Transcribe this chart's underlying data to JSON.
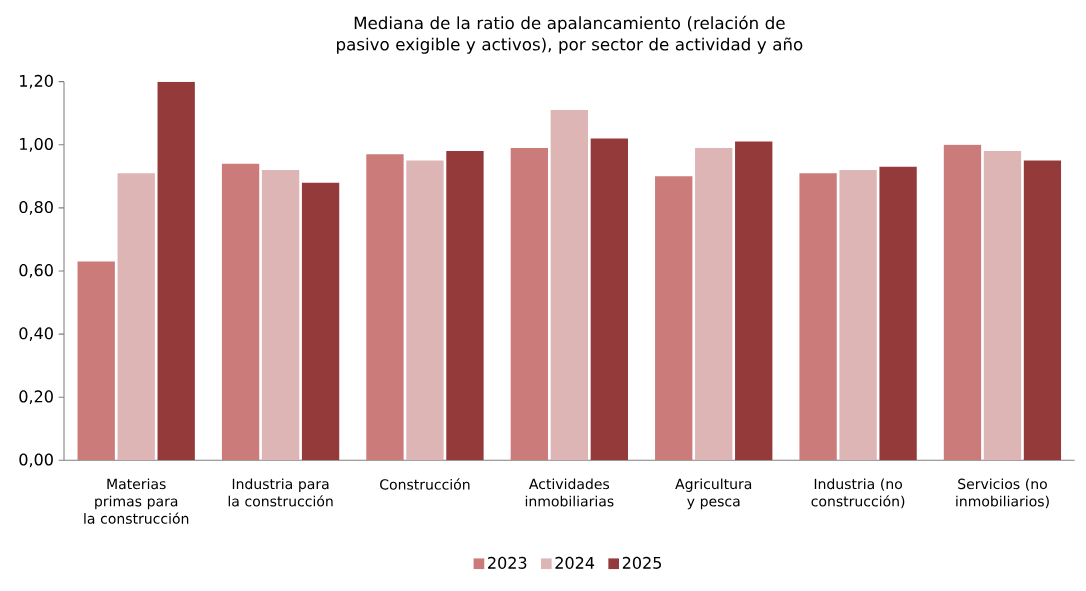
{
  "chart_data": {
    "type": "bar",
    "title": "Mediana de la ratio de apalancamiento (relación de pasivo exigible y activos), por sector de actividad y año",
    "categories": [
      "Materias primas para la construcción",
      "Industria para la construcción",
      "Construcción",
      "Actividades inmobiliarias",
      "Agricultura y pesca",
      "Industria (no construcción)",
      "Servicios (no inmobiliarios)"
    ],
    "series": [
      {
        "name": "2023",
        "color": "#cc7b7b",
        "values": [
          0.63,
          0.94,
          0.97,
          0.99,
          0.9,
          0.91,
          1.0
        ]
      },
      {
        "name": "2024",
        "color": "#deb5b5",
        "values": [
          0.91,
          0.92,
          0.95,
          1.11,
          0.99,
          0.92,
          0.98
        ]
      },
      {
        "name": "2025",
        "color": "#953a3a",
        "values": [
          1.2,
          0.88,
          0.98,
          1.02,
          1.01,
          0.93,
          0.95
        ]
      }
    ],
    "ylim": [
      0,
      1.2
    ],
    "yticks": [
      {
        "value": 0,
        "label": "0,00"
      },
      {
        "value": 0.2,
        "label": "0,20"
      },
      {
        "value": 0.4,
        "label": "0,40"
      },
      {
        "value": 0.6,
        "label": "0,60"
      },
      {
        "value": 0.8,
        "label": "0,80"
      },
      {
        "value": 1.0,
        "label": "1,00"
      },
      {
        "value": 1.2,
        "label": "1,20"
      }
    ],
    "legend": "bottom",
    "grid": false
  }
}
